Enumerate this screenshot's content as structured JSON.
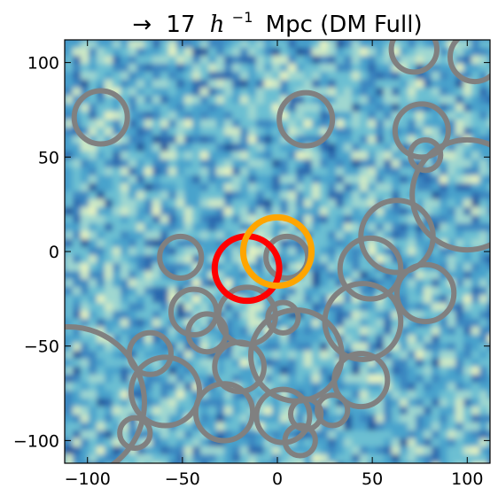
{
  "chart_data": {
    "type": "scatter",
    "title": "→ 17 h⁻¹ Mpc (DM Full)",
    "title_parts": {
      "arrow": "→",
      "number": "17",
      "h": "h",
      "sup": "−1",
      "rest": "Mpc (DM Full)"
    },
    "xlabel": "",
    "ylabel": "",
    "xlim": [
      -112,
      112
    ],
    "ylim": [
      -112,
      112
    ],
    "x_ticks": [
      -100,
      -50,
      0,
      50,
      100
    ],
    "y_ticks": [
      -100,
      -50,
      0,
      50,
      100
    ],
    "x_tick_labels": [
      "−100",
      "−50",
      "0",
      "50",
      "100"
    ],
    "y_tick_labels": [
      "−100",
      "−50",
      "0",
      "50",
      "100"
    ],
    "grid": false,
    "background": "density field (blue/cyan/light-yellow colormap)",
    "colors": {
      "grey": "#808080",
      "red": "#ff0000",
      "orange": "#ffa500",
      "field_dark": "#1e4f98",
      "field_mid": "#4aa3cc",
      "field_light": "#e8f4c0"
    },
    "series": [
      {
        "color": "grey",
        "points": [
          {
            "x": -93,
            "y": 71,
            "r": 14
          },
          {
            "x": 15,
            "y": 70,
            "r": 14
          },
          {
            "x": 72,
            "y": 107,
            "r": 12
          },
          {
            "x": 104,
            "y": 103,
            "r": 13
          },
          {
            "x": 76,
            "y": 64,
            "r": 14
          },
          {
            "x": 78,
            "y": 51,
            "r": 8
          },
          {
            "x": 100,
            "y": 30,
            "r": 29
          },
          {
            "x": 63,
            "y": 8,
            "r": 19
          },
          {
            "x": 49,
            "y": -9,
            "r": 16
          },
          {
            "x": 78,
            "y": -22,
            "r": 15
          },
          {
            "x": 45,
            "y": -37,
            "r": 20
          },
          {
            "x": 5,
            "y": -3,
            "r": 11
          },
          {
            "x": 3,
            "y": -35,
            "r": 8
          },
          {
            "x": -51,
            "y": -3,
            "r": 11
          },
          {
            "x": -44,
            "y": -32,
            "r": 12
          },
          {
            "x": -37,
            "y": -43,
            "r": 10
          },
          {
            "x": -16,
            "y": -34,
            "r": 15
          },
          {
            "x": 10,
            "y": -55,
            "r": 24
          },
          {
            "x": -67,
            "y": -54,
            "r": 11
          },
          {
            "x": -20,
            "y": -61,
            "r": 13
          },
          {
            "x": -59,
            "y": -74,
            "r": 18
          },
          {
            "x": -28,
            "y": -85,
            "r": 15
          },
          {
            "x": 3,
            "y": -87,
            "r": 14
          },
          {
            "x": 15,
            "y": -86,
            "r": 8
          },
          {
            "x": 29,
            "y": -84,
            "r": 8
          },
          {
            "x": 44,
            "y": -68,
            "r": 14
          },
          {
            "x": 12,
            "y": -100,
            "r": 8
          },
          {
            "x": -75,
            "y": -96,
            "r": 8
          },
          {
            "x": -110,
            "y": -80,
            "r": 40
          }
        ]
      },
      {
        "color": "red",
        "points": [
          {
            "x": -16,
            "y": -9,
            "r": 17
          }
        ]
      },
      {
        "color": "orange",
        "points": [
          {
            "x": 0,
            "y": 0,
            "r": 18
          }
        ]
      }
    ]
  }
}
